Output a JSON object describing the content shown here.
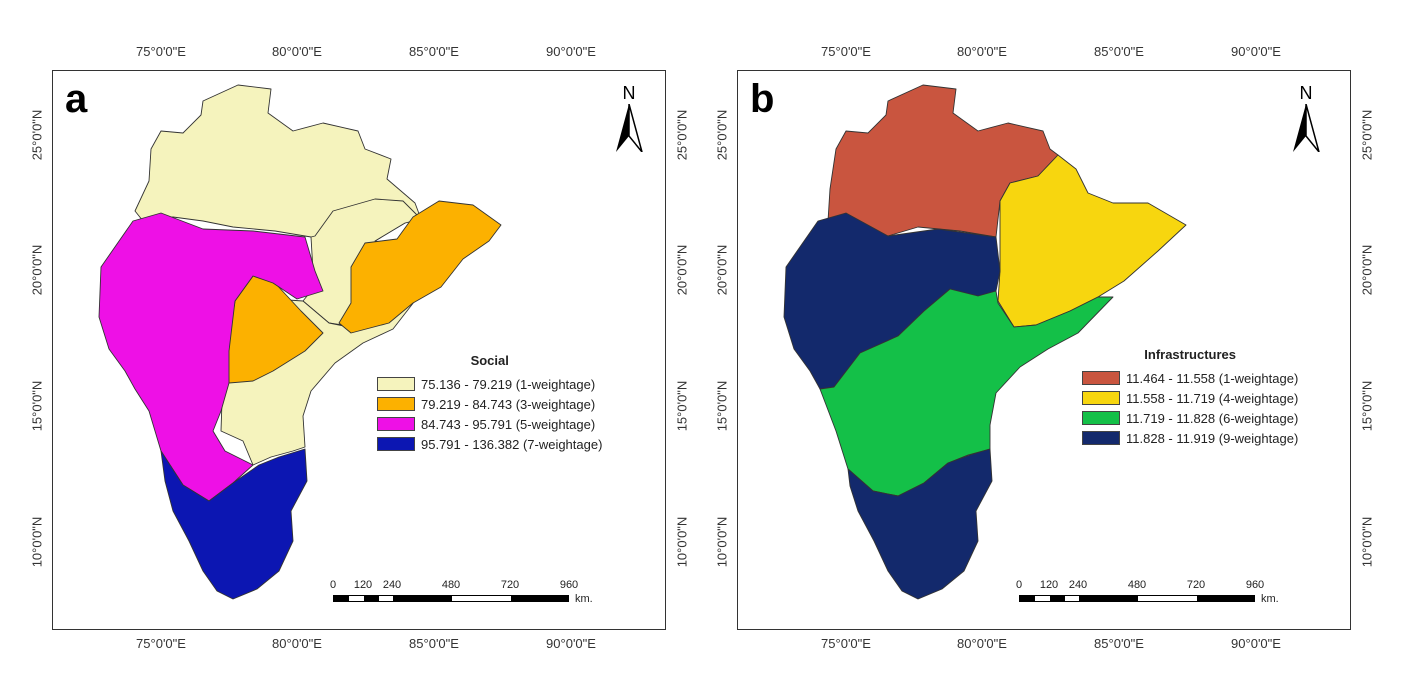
{
  "axes": {
    "longitude_labels": [
      "75°0'0\"E",
      "80°0'0\"E",
      "85°0'0\"E",
      "90°0'0\"E"
    ],
    "latitude_labels": [
      "25°0'0\"N",
      "20°0'0\"N",
      "15°0'0\"N",
      "10°0'0\"N"
    ]
  },
  "north_arrow": {
    "label": "N"
  },
  "scale_bar": {
    "ticks": [
      "0",
      "120",
      "240",
      "480",
      "720",
      "960"
    ],
    "unit": "km."
  },
  "panels": [
    {
      "letter": "a",
      "legend": {
        "title": "Social",
        "items": [
          {
            "range": "75.136 - 79.219",
            "weight": "(1-weightage)",
            "color": "#f5f3bd"
          },
          {
            "range": "79.219 - 84.743",
            "weight": "(3-weightage)",
            "color": "#fcb100"
          },
          {
            "range": "84.743 - 95.791",
            "weight": "(5-weightage)",
            "color": "#ee10e6"
          },
          {
            "range": "95.791 - 136.382",
            "weight": "(7-weightage)",
            "color": "#0c16b2"
          }
        ]
      }
    },
    {
      "letter": "b",
      "legend": {
        "title": "Infrastructures",
        "items": [
          {
            "range": "11.464 - 11.558",
            "weight": "(1-weightage)",
            "color": "#c9553f"
          },
          {
            "range": "11.558 - 11.719",
            "weight": "(4-weightage)",
            "color": "#f7d60f"
          },
          {
            "range": "11.719 - 11.828",
            "weight": "(6-weightage)",
            "color": "#14c048"
          },
          {
            "range": "11.828 - 11.919",
            "weight": "(9-weightage)",
            "color": "#13296c"
          }
        ]
      }
    }
  ]
}
